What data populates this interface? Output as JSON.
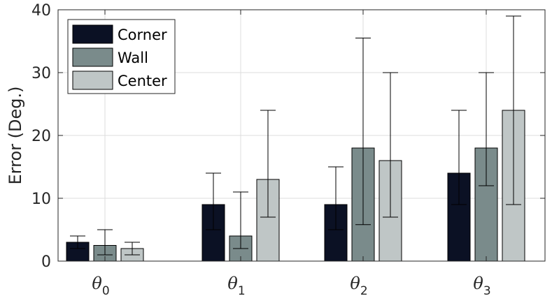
{
  "chart_data": {
    "type": "bar",
    "title": "",
    "xlabel": "",
    "ylabel": "Error (Deg.)",
    "ylim": [
      0,
      40
    ],
    "yticks": [
      0,
      10,
      20,
      30,
      40
    ],
    "grid": true,
    "legend_position": "top-left",
    "categories": [
      {
        "base": "θ",
        "sub": "0"
      },
      {
        "base": "θ",
        "sub": "1"
      },
      {
        "base": "θ",
        "sub": "2"
      },
      {
        "base": "θ",
        "sub": "3"
      }
    ],
    "series": [
      {
        "name": "Corner",
        "color": "#0b1124",
        "values": [
          3,
          9,
          9,
          14
        ],
        "err_low": [
          2,
          5,
          5,
          9
        ],
        "err_high": [
          4,
          14,
          15,
          24
        ]
      },
      {
        "name": "Wall",
        "color": "#7a8b8b",
        "values": [
          2.5,
          4,
          18,
          18
        ],
        "err_low": [
          1,
          2,
          5.8,
          12
        ],
        "err_high": [
          5,
          11,
          35.5,
          30
        ]
      },
      {
        "name": "Center",
        "color": "#bfc6c6",
        "values": [
          2,
          13,
          16,
          24
        ],
        "err_low": [
          1,
          7,
          7,
          9
        ],
        "err_high": [
          3,
          24,
          30,
          39
        ]
      }
    ]
  }
}
